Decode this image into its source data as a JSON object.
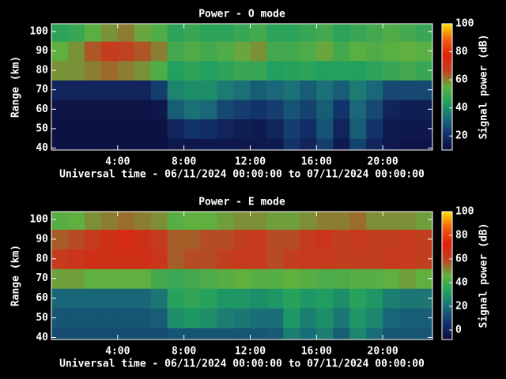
{
  "chart_data": [
    {
      "type": "heatmap",
      "title": "Power - O mode",
      "xlabel": "Universal time - 06/11/2024 00:00:00 to 07/11/2024 00:00:00",
      "ylabel": "Range (km)",
      "colorbar_label": "Signal power (dB)",
      "xlim": [
        0,
        23
      ],
      "ylim": [
        39,
        104
      ],
      "zlim": [
        10,
        100
      ],
      "xticks": [
        {
          "value": 4,
          "label": "4:00"
        },
        {
          "value": 8,
          "label": "8:00"
        },
        {
          "value": 12,
          "label": "12:00"
        },
        {
          "value": 16,
          "label": "16:00"
        },
        {
          "value": 20,
          "label": "20:00"
        }
      ],
      "yticks": [
        40,
        50,
        60,
        70,
        80,
        90,
        100
      ],
      "cticks": [
        20,
        40,
        60,
        80,
        100
      ],
      "colormap": [
        "#0b0b3a",
        "#13306a",
        "#1a6a7a",
        "#20a060",
        "#60b040",
        "#c04020",
        "#e02010",
        "#f06010",
        "#ffe000"
      ],
      "x_bins": [
        0,
        1,
        2,
        3,
        4,
        5,
        6,
        7,
        8,
        9,
        10,
        11,
        12,
        13,
        14,
        15,
        16,
        17,
        18,
        19,
        20,
        21,
        22,
        23
      ],
      "y_bins": [
        39,
        45,
        55,
        65,
        75,
        85,
        95,
        104
      ],
      "values": [
        [
          12,
          12,
          12,
          12,
          12,
          12,
          12,
          14,
          14,
          14,
          14,
          14,
          14,
          15,
          22,
          18,
          24,
          15,
          25,
          18,
          14,
          13,
          13
        ],
        [
          12,
          12,
          12,
          12,
          12,
          12,
          12,
          18,
          22,
          20,
          18,
          16,
          15,
          18,
          24,
          20,
          28,
          18,
          30,
          22,
          15,
          14,
          14
        ],
        [
          13,
          13,
          13,
          13,
          13,
          13,
          14,
          30,
          34,
          32,
          26,
          24,
          22,
          24,
          28,
          25,
          30,
          22,
          32,
          26,
          18,
          16,
          16
        ],
        [
          18,
          18,
          18,
          18,
          18,
          18,
          24,
          38,
          40,
          40,
          36,
          34,
          30,
          32,
          34,
          30,
          34,
          30,
          36,
          32,
          26,
          26,
          26
        ],
        [
          58,
          58,
          60,
          62,
          60,
          58,
          52,
          44,
          46,
          44,
          46,
          48,
          48,
          44,
          45,
          46,
          44,
          45,
          44,
          46,
          48,
          50,
          48
        ],
        [
          55,
          58,
          64,
          68,
          66,
          64,
          60,
          50,
          52,
          50,
          52,
          56,
          58,
          50,
          50,
          52,
          56,
          50,
          54,
          52,
          54,
          55,
          54
        ],
        [
          46,
          48,
          54,
          58,
          60,
          56,
          52,
          46,
          48,
          46,
          46,
          48,
          50,
          46,
          46,
          48,
          50,
          46,
          48,
          50,
          52,
          50,
          48
        ]
      ]
    },
    {
      "type": "heatmap",
      "title": "Power - E mode",
      "xlabel": "Universal time - 06/11/2024 00:00:00 to 07/11/2024 00:00:00",
      "ylabel": "Range (km)",
      "colorbar_label": "Signal power (dB)",
      "xlim": [
        0,
        23
      ],
      "ylim": [
        39,
        104
      ],
      "zlim": [
        -8,
        100
      ],
      "xticks": [
        {
          "value": 4,
          "label": "4:00"
        },
        {
          "value": 8,
          "label": "8:00"
        },
        {
          "value": 12,
          "label": "12:00"
        },
        {
          "value": 16,
          "label": "16:00"
        },
        {
          "value": 20,
          "label": "20:00"
        }
      ],
      "yticks": [
        40,
        50,
        60,
        70,
        80,
        90,
        100
      ],
      "cticks": [
        0,
        20,
        40,
        60,
        80,
        100
      ],
      "colormap": [
        "#0b0b3a",
        "#13306a",
        "#1a6a7a",
        "#20a060",
        "#60b040",
        "#c04020",
        "#e02010",
        "#f06010",
        "#ffe000"
      ],
      "x_bins": [
        0,
        1,
        2,
        3,
        4,
        5,
        6,
        7,
        8,
        9,
        10,
        11,
        12,
        13,
        14,
        15,
        16,
        17,
        18,
        19,
        20,
        21,
        22,
        23
      ],
      "y_bins": [
        39,
        45,
        55,
        65,
        75,
        85,
        95,
        104
      ],
      "values": [
        [
          12,
          12,
          12,
          12,
          12,
          12,
          12,
          14,
          14,
          14,
          14,
          14,
          14,
          15,
          24,
          20,
          24,
          16,
          26,
          20,
          14,
          14,
          14
        ],
        [
          14,
          14,
          14,
          14,
          14,
          14,
          16,
          28,
          30,
          28,
          24,
          22,
          20,
          20,
          30,
          24,
          28,
          22,
          30,
          26,
          18,
          16,
          16
        ],
        [
          18,
          18,
          18,
          18,
          18,
          18,
          22,
          34,
          36,
          34,
          30,
          30,
          28,
          30,
          34,
          30,
          32,
          28,
          34,
          30,
          24,
          22,
          22
        ],
        [
          48,
          48,
          46,
          46,
          46,
          46,
          40,
          38,
          40,
          42,
          44,
          46,
          44,
          44,
          46,
          44,
          42,
          42,
          44,
          44,
          46,
          48,
          46
        ],
        [
          62,
          64,
          66,
          66,
          66,
          66,
          64,
          56,
          58,
          58,
          60,
          62,
          62,
          58,
          60,
          62,
          62,
          60,
          60,
          60,
          62,
          62,
          60
        ],
        [
          56,
          58,
          62,
          66,
          68,
          66,
          62,
          56,
          56,
          58,
          58,
          60,
          62,
          58,
          58,
          62,
          64,
          60,
          62,
          60,
          60,
          62,
          60
        ],
        [
          44,
          46,
          50,
          52,
          54,
          52,
          50,
          44,
          46,
          46,
          48,
          50,
          50,
          48,
          48,
          50,
          52,
          52,
          54,
          50,
          50,
          50,
          48
        ]
      ]
    }
  ]
}
